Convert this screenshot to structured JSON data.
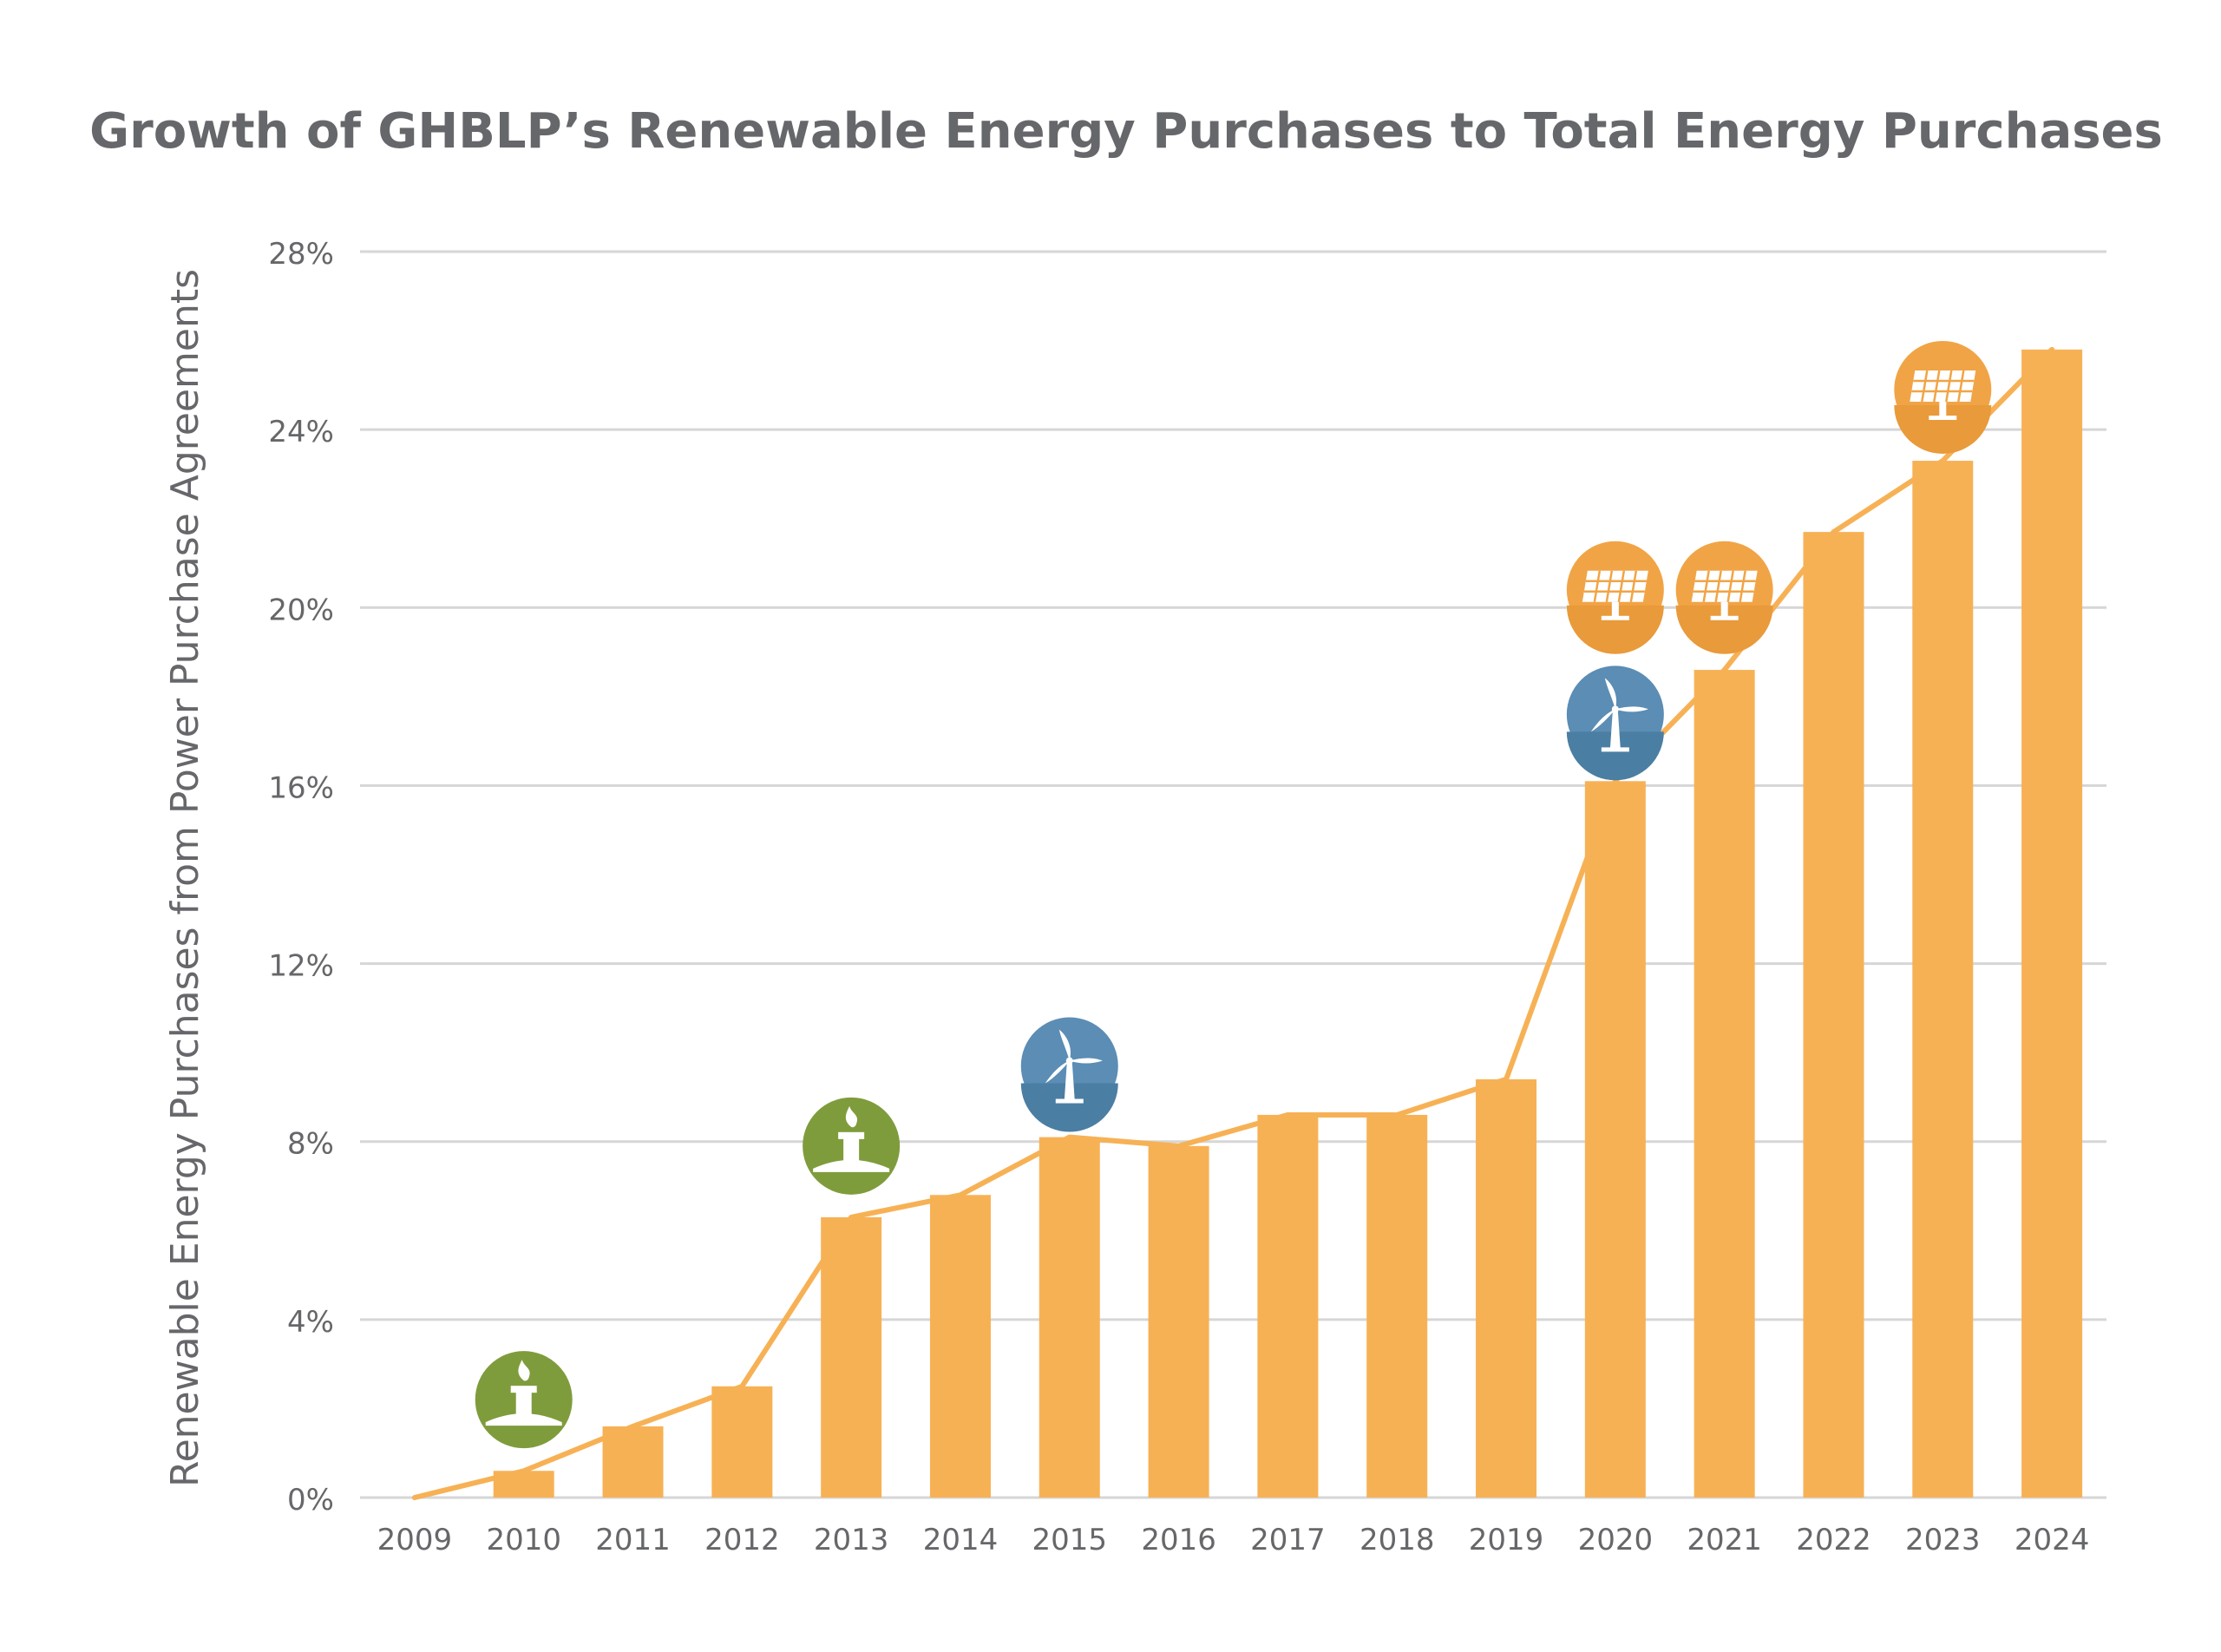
{
  "chart_data": {
    "type": "bar",
    "title": "Growth of GHBLP’s Renewable Energy Purchases to Total Energy Purchases",
    "xlabel": "",
    "ylabel": "Renewable Energy Purchases from Power Purchase Agreements",
    "categories": [
      "2009",
      "2010",
      "2011",
      "2012",
      "2013",
      "2014",
      "2015",
      "2016",
      "2017",
      "2018",
      "2019",
      "2020",
      "2021",
      "2022",
      "2023",
      "2024"
    ],
    "values": [
      0,
      0.6,
      1.6,
      2.5,
      6.3,
      6.8,
      8.1,
      7.9,
      8.6,
      8.6,
      9.4,
      16.1,
      18.6,
      21.7,
      23.3,
      25.8
    ],
    "line_values": [
      0,
      0.6,
      1.6,
      2.5,
      6.3,
      6.8,
      8.1,
      7.9,
      8.6,
      8.6,
      9.4,
      16.1,
      18.6,
      21.7,
      23.3,
      25.8
    ],
    "ylim": [
      0,
      28
    ],
    "yticks": [
      0,
      4,
      8,
      12,
      16,
      20,
      24,
      28
    ],
    "ytick_labels": [
      "0%",
      "4%",
      "8%",
      "12%",
      "16%",
      "20%",
      "24%",
      "28%"
    ],
    "grid": true,
    "colors": {
      "bar": "#f7b155",
      "line": "#f7b155",
      "grid": "#d6d6d6",
      "text": "#66676a",
      "landfill_gas": "#7f9c3c",
      "wind": "#5b8db5",
      "solar": "#f1a446"
    },
    "annotations": [
      {
        "category": "2010",
        "icon": "landfill-gas-icon",
        "value": 2.2
      },
      {
        "category": "2013",
        "icon": "landfill-gas-icon",
        "value": 7.9
      },
      {
        "category": "2015",
        "icon": "wind-turbine-icon",
        "value": 9.7
      },
      {
        "category": "2020",
        "icon": "wind-turbine-icon",
        "value": 17.6
      },
      {
        "category": "2020",
        "icon": "solar-panel-icon",
        "value": 20.4
      },
      {
        "category": "2021",
        "icon": "solar-panel-icon",
        "value": 20.4
      },
      {
        "category": "2023",
        "icon": "solar-panel-icon",
        "value": 24.9
      }
    ]
  }
}
